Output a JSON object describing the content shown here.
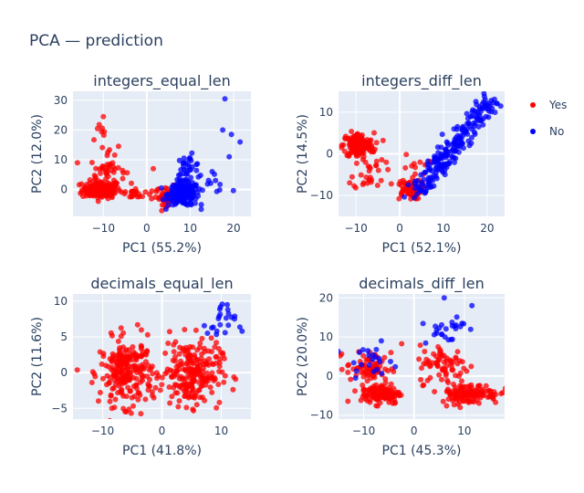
{
  "title": "PCA — prediction",
  "legend": {
    "placement": "top-right",
    "items": [
      {
        "label": "Yes",
        "color": "#ff0000"
      },
      {
        "label": "No",
        "color": "#0000ff"
      }
    ]
  },
  "colors": {
    "plot_bg": "#e5ecf6",
    "grid": "#ffffff",
    "yes": "#ff0000",
    "no": "#0000ff"
  },
  "chart_data": [
    {
      "type": "scatter",
      "title": "integers_equal_len",
      "xlabel": "PC1 (55.2%)",
      "ylabel": "PC2 (12.0%)",
      "xlim": [
        -17,
        24
      ],
      "ylim": [
        -9,
        33
      ],
      "xticks": [
        -10,
        0,
        10,
        20
      ],
      "yticks": [
        0,
        10,
        20,
        30
      ],
      "grid": true,
      "clusters": [
        {
          "series": "Yes",
          "n": 170,
          "cx": -10.5,
          "cy": 0,
          "sx": 2.2,
          "sy": 1.5
        },
        {
          "series": "Yes",
          "n": 40,
          "cx": -9,
          "cy": 6.5,
          "sx": 2.0,
          "sy": 2.2
        },
        {
          "series": "Yes",
          "n": 25,
          "cx": -3,
          "cy": -1.5,
          "sx": 2.5,
          "sy": 1.0
        },
        {
          "series": "Yes",
          "n": 55,
          "cx": 5,
          "cy": -2,
          "sx": 1.5,
          "sy": 1.5
        },
        {
          "series": "Yes",
          "n": 10,
          "cx": -10,
          "cy": 17,
          "sx": 1.5,
          "sy": 2.5
        },
        {
          "series": "No",
          "n": 190,
          "cx": 8.5,
          "cy": -1.5,
          "sx": 1.8,
          "sy": 2.0
        },
        {
          "series": "No",
          "n": 30,
          "cx": 9.5,
          "cy": 7.5,
          "sx": 1.5,
          "sy": 2.0
        },
        {
          "series": "No",
          "n": 15,
          "cx": 14,
          "cy": 3,
          "sx": 2.5,
          "sy": 2.0
        }
      ],
      "points": [
        {
          "series": "No",
          "x": 18,
          "y": 30.5
        },
        {
          "series": "No",
          "x": 21.5,
          "y": 16
        },
        {
          "series": "No",
          "x": 19.5,
          "y": 18.5
        },
        {
          "series": "No",
          "x": 17.5,
          "y": 20
        },
        {
          "series": "No",
          "x": 19,
          "y": 11
        },
        {
          "series": "Yes",
          "x": -10,
          "y": 24.5
        },
        {
          "series": "Yes",
          "x": -6.5,
          "y": 14.5
        },
        {
          "series": "Yes",
          "x": 1.5,
          "y": 7
        }
      ]
    },
    {
      "type": "scatter",
      "title": "integers_diff_len",
      "xlabel": "PC1 (52.1%)",
      "ylabel": "PC2 (14.5%)",
      "xlim": [
        -14,
        24
      ],
      "ylim": [
        -15,
        15
      ],
      "xticks": [
        -10,
        0,
        10,
        20
      ],
      "yticks": [
        -10,
        0,
        10
      ],
      "grid": true,
      "clusters": [
        {
          "series": "Yes",
          "n": 150,
          "cx": -9.5,
          "cy": 2,
          "sx": 1.8,
          "sy": 1.5
        },
        {
          "series": "Yes",
          "n": 30,
          "cx": -7,
          "cy": -4,
          "sx": 1.8,
          "sy": 2.5
        },
        {
          "series": "Yes",
          "n": 70,
          "cx": 2,
          "cy": -8.5,
          "sx": 1.5,
          "sy": 1.2
        },
        {
          "series": "Yes",
          "n": 15,
          "cx": 4,
          "cy": -4,
          "sx": 1.5,
          "sy": 2.0
        }
      ],
      "lines": [
        {
          "series": "No",
          "n": 220,
          "from": [
            4,
            -9
          ],
          "to": [
            21,
            13
          ],
          "spread": 1.3
        }
      ],
      "points": []
    },
    {
      "type": "scatter",
      "title": "decimals_equal_len",
      "xlabel": "PC1 (41.8%)",
      "ylabel": "PC2 (11.6%)",
      "xlim": [
        -15,
        15
      ],
      "ylim": [
        -6.5,
        11
      ],
      "xticks": [
        -10,
        0,
        10
      ],
      "yticks": [
        -5,
        0,
        5,
        10
      ],
      "grid": true,
      "clusters": [
        {
          "series": "Yes",
          "n": 230,
          "cx": -6,
          "cy": 0,
          "sx": 2.2,
          "sy": 2.3
        },
        {
          "series": "Yes",
          "n": 230,
          "cx": 5,
          "cy": 0,
          "sx": 2.5,
          "sy": 2.3
        },
        {
          "series": "No",
          "n": 22,
          "cx": 10,
          "cy": 7,
          "sx": 1.2,
          "sy": 1.5
        }
      ],
      "points": [
        {
          "series": "No",
          "x": 13.5,
          "y": 5.8
        },
        {
          "series": "No",
          "x": 11,
          "y": 9.5
        }
      ]
    },
    {
      "type": "scatter",
      "title": "decimals_diff_len",
      "xlabel": "PC1 (45.3%)",
      "ylabel": "PC2 (20.0%)",
      "xlim": [
        -15,
        18
      ],
      "ylim": [
        -11,
        21
      ],
      "xticks": [
        -10,
        0,
        10
      ],
      "yticks": [
        -10,
        0,
        10,
        20
      ],
      "grid": true,
      "clusters": [
        {
          "series": "Yes",
          "n": 70,
          "cx": -9,
          "cy": 2,
          "sx": 2.2,
          "sy": 2.0
        },
        {
          "series": "Yes",
          "n": 120,
          "cx": -6.5,
          "cy": -4.5,
          "sx": 2.0,
          "sy": 1.3
        },
        {
          "series": "Yes",
          "n": 70,
          "cx": 6,
          "cy": 3,
          "sx": 2.5,
          "sy": 2.5
        },
        {
          "series": "Yes",
          "n": 130,
          "cx": 11,
          "cy": -4.5,
          "sx": 3.0,
          "sy": 1.3
        },
        {
          "series": "No",
          "n": 25,
          "cx": 6,
          "cy": 12,
          "sx": 2.0,
          "sy": 2.0
        },
        {
          "series": "No",
          "n": 22,
          "cx": -9,
          "cy": 4,
          "sx": 2.5,
          "sy": 1.5
        }
      ],
      "points": [
        {
          "series": "No",
          "x": 11.5,
          "y": 18
        },
        {
          "series": "No",
          "x": 6,
          "y": 20
        },
        {
          "series": "No",
          "x": -6.5,
          "y": 9
        }
      ]
    }
  ]
}
